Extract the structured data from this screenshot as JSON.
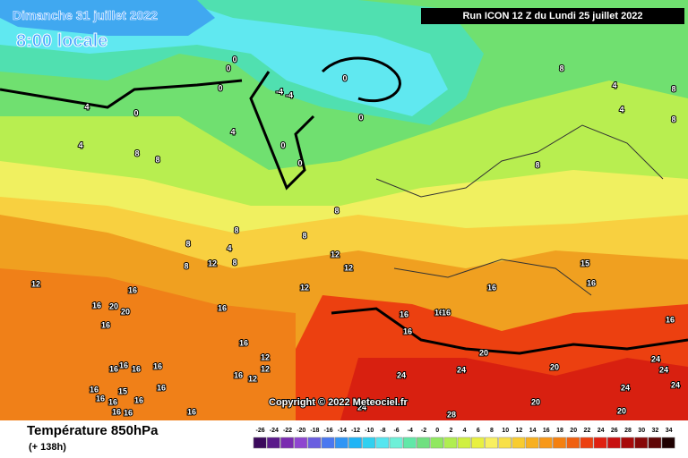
{
  "header": {
    "date": "Dimanche 31 juillet 2022",
    "time": "8:00 locale",
    "run": "Run ICON 12 Z du Lundi 25 juillet 2022"
  },
  "copyright": "Copyright © 2022 Meteociel.fr",
  "footer": {
    "title": "Température 850hPa",
    "lead": "(+ 138h)"
  },
  "legend": {
    "ticks": [
      "-26",
      "-24",
      "-22",
      "-20",
      "-18",
      "-16",
      "-14",
      "-12",
      "-10",
      "-8",
      "-6",
      "-4",
      "-2",
      "0",
      "2",
      "4",
      "6",
      "8",
      "10",
      "12",
      "14",
      "16",
      "18",
      "20",
      "22",
      "24",
      "26",
      "28",
      "30",
      "32",
      "34"
    ],
    "colors": [
      "#3b0a5c",
      "#5a1a8a",
      "#7a2bb0",
      "#8f45d0",
      "#6a5ee0",
      "#4a78f0",
      "#2f95f5",
      "#20b4f5",
      "#30d0f0",
      "#55e6f0",
      "#6df0d8",
      "#60e8a8",
      "#70e080",
      "#90e860",
      "#b0ee50",
      "#d0f040",
      "#e8f040",
      "#f8f060",
      "#f8e048",
      "#f8cc30",
      "#f8b020",
      "#f89818",
      "#f48010",
      "#f06010",
      "#ec4010",
      "#e02010",
      "#c81010",
      "#a80a0a",
      "#880808",
      "#600606",
      "#200202"
    ]
  },
  "contour_labels": [
    "0",
    "0",
    "0",
    "0",
    "-4",
    "-4",
    "0",
    "0",
    "0",
    "0",
    "4",
    "4",
    "4",
    "8",
    "8",
    "8",
    "4",
    "4",
    "8",
    "8",
    "8",
    "8",
    "8",
    "8",
    "8",
    "4",
    "8",
    "12",
    "8",
    "12",
    "12",
    "12",
    "12",
    "16",
    "16",
    "20",
    "20",
    "16",
    "16",
    "16",
    "16",
    "16",
    "16",
    "15",
    "16",
    "16",
    "16",
    "16",
    "12",
    "12",
    "16",
    "16",
    "16",
    "16",
    "16",
    "12",
    "16",
    "16",
    "15",
    "16",
    "16",
    "16",
    "16",
    "16",
    "16",
    "20",
    "24",
    "24",
    "20",
    "24",
    "24",
    "24",
    "24",
    "20",
    "20",
    "28",
    "24"
  ]
}
